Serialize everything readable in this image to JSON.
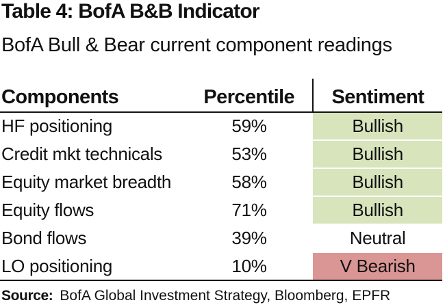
{
  "title": "Table 4: BofA B&B Indicator",
  "subtitle": "BofA Bull & Bear current component readings",
  "columns": {
    "components": "Components",
    "percentile": "Percentile",
    "sentiment": "Sentiment"
  },
  "rows": [
    {
      "component": "HF positioning",
      "percentile": "59%",
      "sentiment": "Bullish",
      "color": "#d8e4bc"
    },
    {
      "component": "Credit mkt technicals",
      "percentile": "53%",
      "sentiment": "Bullish",
      "color": "#d8e4bc"
    },
    {
      "component": "Equity market breadth",
      "percentile": "58%",
      "sentiment": "Bullish",
      "color": "#d8e4bc"
    },
    {
      "component": "Equity flows",
      "percentile": "71%",
      "sentiment": "Bullish",
      "color": "#d8e4bc"
    },
    {
      "component": "Bond flows",
      "percentile": "39%",
      "sentiment": "Neutral",
      "color": "#ffffff"
    },
    {
      "component": "LO positioning",
      "percentile": "10%",
      "sentiment": "V Bearish",
      "color": "#da9694"
    }
  ],
  "source": {
    "label": "Source:",
    "text": "BofA Global Investment Strategy, Bloomberg, EPFR"
  }
}
